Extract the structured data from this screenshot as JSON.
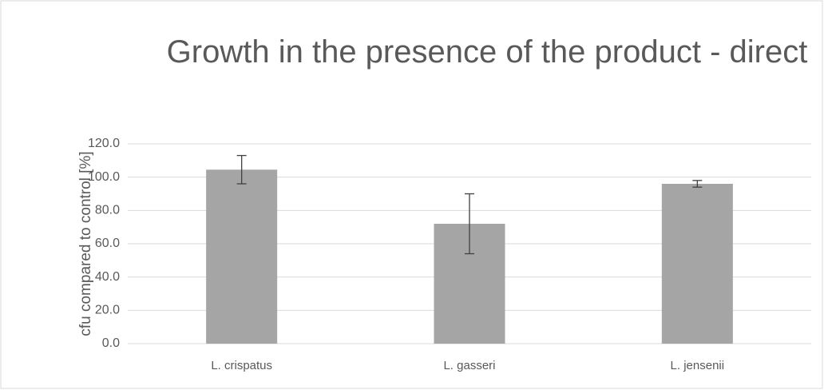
{
  "chart_data": {
    "type": "bar",
    "title": "Growth in the presence of the product - direct",
    "y_label": "cfu compared to control [%]",
    "categories": [
      "L. crispatus",
      "L. gasseri",
      "L. jensenii"
    ],
    "values": [
      104.5,
      72,
      96
    ],
    "errors": [
      8.5,
      18,
      2
    ],
    "color": "#a5a5a5",
    "ylim": [
      0,
      120
    ],
    "yticks": [
      {
        "value": 0,
        "label": "0.0"
      },
      {
        "value": 20,
        "label": "20.0"
      },
      {
        "value": 40,
        "label": "40.0"
      },
      {
        "value": 60,
        "label": "60.0"
      },
      {
        "value": 80,
        "label": "80.0"
      },
      {
        "value": 100,
        "label": "100.0"
      },
      {
        "value": 120,
        "label": "120.0"
      }
    ],
    "grid": true
  }
}
